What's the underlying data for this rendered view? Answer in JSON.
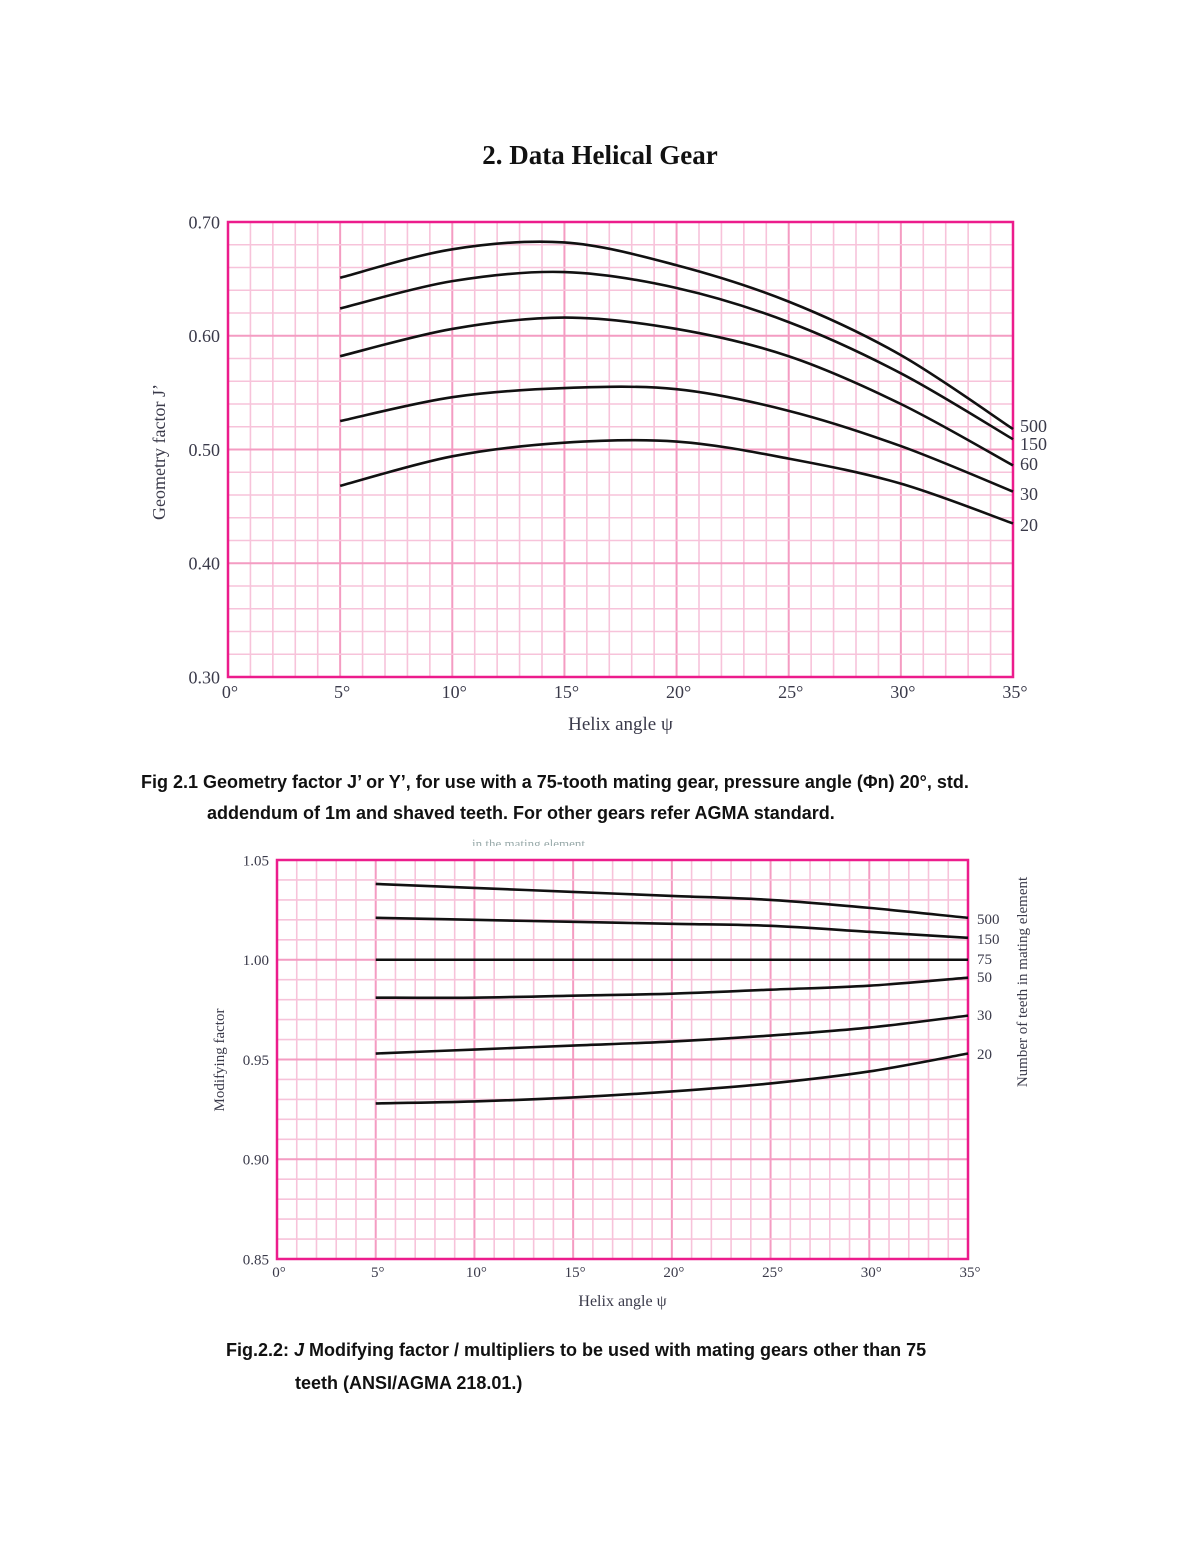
{
  "page_title": "2. Data Helical Gear",
  "caption1": {
    "line1": "Fig 2.1 Geometry factor J’ or Y’, for use with a 75-tooth mating gear, pressure angle (Φn) 20°, std.",
    "line2": "addendum of 1m and shaved teeth. For other gears refer AGMA standard."
  },
  "caption2": {
    "prefix": "Fig.2.2: ",
    "italic": "J",
    "line1_rest": " Modifying factor / multipliers to be used with mating gears other than 75",
    "line2": "teeth (ANSI/AGMA 218.01.)"
  },
  "cropped_heading": "in the mating element",
  "colors": {
    "grid_minor": "#f7c3da",
    "grid_major": "#f49cc2",
    "frame": "#ec1c8c",
    "curve": "#111111"
  },
  "chart_data": [
    {
      "type": "line",
      "title": "",
      "xlabel": "Helix angle ψ",
      "ylabel": "Geometry factor J’",
      "xlim": [
        0,
        35
      ],
      "ylim": [
        0.3,
        0.7
      ],
      "grid": true,
      "x_ticks": [
        "0°",
        "5°",
        "10°",
        "15°",
        "20°",
        "25°",
        "30°",
        "35°"
      ],
      "y_ticks": [
        "0.30",
        "0.40",
        "0.50",
        "0.60",
        "0.70"
      ],
      "legend": "right (curve end labels)",
      "x": [
        5,
        10,
        15,
        20,
        25,
        30,
        35
      ],
      "series": [
        {
          "name": "500",
          "values": [
            0.651,
            0.676,
            0.682,
            0.662,
            0.63,
            0.583,
            0.518
          ]
        },
        {
          "name": "150",
          "values": [
            0.624,
            0.648,
            0.656,
            0.642,
            0.612,
            0.567,
            0.509
          ]
        },
        {
          "name": "60",
          "values": [
            0.582,
            0.606,
            0.616,
            0.606,
            0.582,
            0.54,
            0.486
          ]
        },
        {
          "name": "30",
          "values": [
            0.525,
            0.546,
            0.554,
            0.553,
            0.534,
            0.503,
            0.463
          ]
        },
        {
          "name": "20",
          "values": [
            0.468,
            0.494,
            0.506,
            0.507,
            0.492,
            0.47,
            0.435
          ]
        }
      ]
    },
    {
      "type": "line",
      "title": "",
      "xlabel": "Helix angle ψ",
      "ylabel": "Modifying factor",
      "y2label": "Number of teeth in mating element",
      "xlim": [
        0,
        35
      ],
      "ylim": [
        0.85,
        1.05
      ],
      "grid": true,
      "x_ticks": [
        "0°",
        "5°",
        "10°",
        "15°",
        "20°",
        "25°",
        "30°",
        "35°"
      ],
      "y_ticks": [
        "0.85",
        "0.90",
        "0.95",
        "1.00",
        "1.05"
      ],
      "legend": "right (curve end labels)",
      "x": [
        5,
        10,
        15,
        20,
        25,
        30,
        35
      ],
      "series": [
        {
          "name": "500",
          "values": [
            1.038,
            1.036,
            1.034,
            1.032,
            1.03,
            1.026,
            1.021
          ]
        },
        {
          "name": "150",
          "values": [
            1.021,
            1.02,
            1.019,
            1.018,
            1.017,
            1.014,
            1.011
          ]
        },
        {
          "name": "75",
          "values": [
            1.0,
            1.0,
            1.0,
            1.0,
            1.0,
            1.0,
            1.0
          ]
        },
        {
          "name": "50",
          "values": [
            0.981,
            0.981,
            0.982,
            0.983,
            0.985,
            0.987,
            0.991
          ]
        },
        {
          "name": "30",
          "values": [
            0.953,
            0.955,
            0.957,
            0.959,
            0.962,
            0.966,
            0.972
          ]
        },
        {
          "name": "20",
          "values": [
            0.928,
            0.929,
            0.931,
            0.934,
            0.938,
            0.944,
            0.953
          ]
        }
      ]
    }
  ]
}
